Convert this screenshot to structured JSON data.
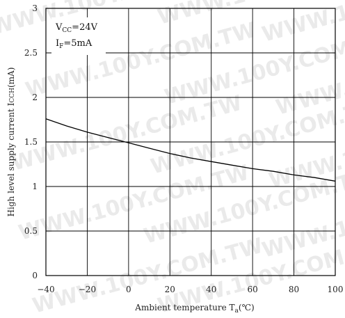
{
  "watermark": "WWW.100Y.COM.TW",
  "chart_data": {
    "type": "line",
    "xlabel": {
      "main": "Ambient temperature T",
      "sub": "a",
      "unit": "(℃)"
    },
    "ylabel": {
      "main": "High level supply current I",
      "sub": "CCH",
      "unit": "(mA)"
    },
    "xlim": [
      -40,
      100
    ],
    "ylim": [
      0,
      3
    ],
    "xticks": [
      -40,
      -20,
      0,
      20,
      40,
      60,
      80,
      100
    ],
    "yticks": [
      0,
      0.5,
      1,
      1.5,
      2,
      2.5,
      3
    ],
    "ytick_labels": [
      "0",
      "0.5",
      "1",
      "1.5",
      "2",
      "2.5",
      "3"
    ],
    "xtick_labels": [
      "−40",
      "−20",
      "0",
      "20",
      "40",
      "60",
      "80",
      "100"
    ],
    "grid": true,
    "conditions": [
      {
        "main": "V",
        "sub": "CC",
        "rest": "=24V"
      },
      {
        "main": "I",
        "sub": "F",
        "rest": "=5mA"
      }
    ],
    "series": [
      {
        "x": [
          -40,
          -30,
          -20,
          -10,
          0,
          10,
          20,
          30,
          40,
          50,
          60,
          70,
          80,
          90,
          100
        ],
        "y": [
          1.76,
          1.68,
          1.61,
          1.55,
          1.49,
          1.43,
          1.37,
          1.32,
          1.28,
          1.24,
          1.2,
          1.17,
          1.13,
          1.1,
          1.06
        ]
      }
    ]
  }
}
